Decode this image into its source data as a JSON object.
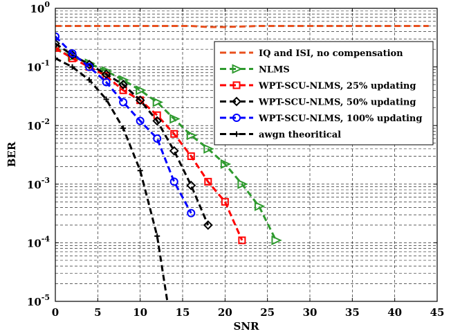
{
  "chart_data": {
    "type": "line",
    "xlabel": "SNR",
    "ylabel": "BER",
    "xlim": [
      0,
      45
    ],
    "ylim": [
      1e-05,
      1
    ],
    "yscale": "log",
    "grid": true,
    "legend_position": "top-right",
    "x_ticks": [
      0,
      5,
      10,
      15,
      20,
      25,
      30,
      35,
      40,
      45
    ],
    "y_ticks": [
      {
        "base": "10",
        "exp": "-5",
        "value": 1e-05
      },
      {
        "base": "10",
        "exp": "-4",
        "value": 0.0001
      },
      {
        "base": "10",
        "exp": "-3",
        "value": 0.001
      },
      {
        "base": "10",
        "exp": "-2",
        "value": 0.01
      },
      {
        "base": "10",
        "exp": "-1",
        "value": 0.1
      },
      {
        "base": "10",
        "exp": "0",
        "value": 1
      }
    ],
    "series": [
      {
        "name": "IQ and ISI, no compensation",
        "color": "#e8501e",
        "marker": "none",
        "x": [
          0,
          4,
          8,
          12,
          16,
          18,
          20,
          24,
          28,
          32,
          36,
          40,
          44
        ],
        "y": [
          0.5,
          0.5,
          0.5,
          0.5,
          0.5,
          0.48,
          0.48,
          0.5,
          0.5,
          0.5,
          0.5,
          0.5,
          0.5
        ]
      },
      {
        "name": "NLMS",
        "color": "#2e9a2e",
        "marker": "triangle-right",
        "x": [
          0,
          2,
          4,
          6,
          8,
          10,
          12,
          14,
          16,
          18,
          20,
          22,
          24,
          26
        ],
        "y": [
          0.2,
          0.15,
          0.115,
          0.085,
          0.06,
          0.04,
          0.025,
          0.013,
          0.0068,
          0.004,
          0.0022,
          0.001,
          0.00042,
          0.00011
        ]
      },
      {
        "name": "WPT-SCU-NLMS, 25% updating",
        "color": "#ff0000",
        "marker": "square",
        "x": [
          0,
          2,
          4,
          6,
          8,
          10,
          12,
          14,
          16,
          18,
          20,
          22
        ],
        "y": [
          0.21,
          0.14,
          0.1,
          0.07,
          0.04,
          0.027,
          0.015,
          0.0072,
          0.003,
          0.0011,
          0.0005,
          0.00011
        ]
      },
      {
        "name": "WPT-SCU-NLMS, 50% updating",
        "color": "#000000",
        "marker": "diamond",
        "x": [
          0,
          2,
          4,
          6,
          8,
          10,
          12,
          14,
          16,
          18
        ],
        "y": [
          0.25,
          0.16,
          0.11,
          0.075,
          0.05,
          0.027,
          0.012,
          0.0037,
          0.00095,
          0.0002
        ]
      },
      {
        "name": "WPT-SCU-NLMS, 100% updating",
        "color": "#0000ff",
        "marker": "circle",
        "x": [
          0,
          2,
          4,
          6,
          8,
          10,
          12,
          14,
          16
        ],
        "y": [
          0.33,
          0.17,
          0.1,
          0.055,
          0.025,
          0.012,
          0.006,
          0.0011,
          0.00032
        ]
      },
      {
        "name": "awgn theoritical",
        "color": "#000000",
        "marker": "plus",
        "x": [
          0,
          2,
          4,
          6,
          8,
          10,
          12,
          13.2
        ],
        "y": [
          0.14,
          0.1,
          0.06,
          0.028,
          0.009,
          0.0017,
          0.00013,
          1e-05
        ]
      }
    ]
  }
}
